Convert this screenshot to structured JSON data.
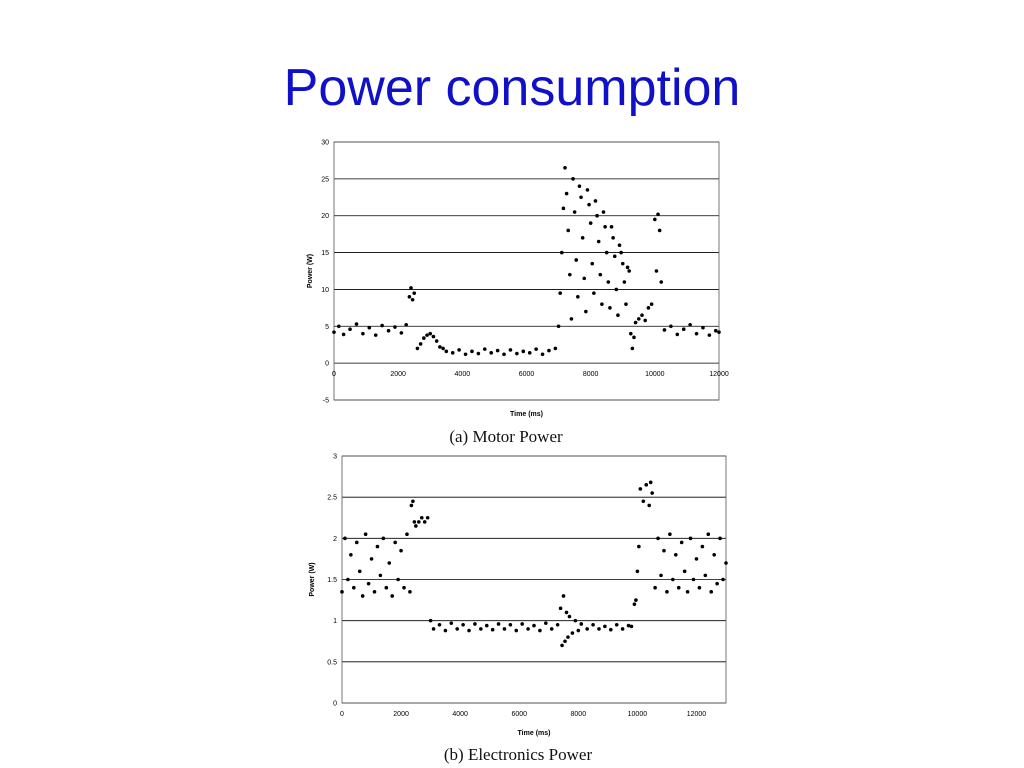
{
  "slide": {
    "title": "Power consumption"
  },
  "colors": {
    "title": "#1010c8",
    "points": "#000000",
    "grid": "#000000"
  },
  "chart_data": [
    {
      "type": "scatter",
      "caption": "(a) Motor Power",
      "xlabel": "Time (ms)",
      "ylabel": "Power (W)",
      "xlim": [
        0,
        12000
      ],
      "ylim": [
        -5,
        30
      ],
      "xticks": [
        0,
        2000,
        4000,
        6000,
        8000,
        10000,
        12000
      ],
      "xtick_labels": [
        "0",
        "2000",
        "4000",
        "6000",
        "8000",
        "10000",
        "12000"
      ],
      "yticks": [
        -5,
        0,
        5,
        10,
        15,
        20,
        25,
        30
      ],
      "ytick_labels": [
        "-5",
        "0",
        "5",
        "10",
        "15",
        "20",
        "25",
        "30"
      ],
      "grid": "horizontal",
      "series": [
        {
          "points": [
            [
              0,
              4.2
            ],
            [
              150,
              5.0
            ],
            [
              300,
              3.9
            ],
            [
              500,
              4.6
            ],
            [
              700,
              5.3
            ],
            [
              900,
              4.0
            ],
            [
              1100,
              4.8
            ],
            [
              1300,
              3.8
            ],
            [
              1500,
              5.1
            ],
            [
              1700,
              4.4
            ],
            [
              1900,
              4.9
            ],
            [
              2100,
              4.1
            ],
            [
              2250,
              5.2
            ],
            [
              2350,
              9.0
            ],
            [
              2400,
              10.2
            ],
            [
              2450,
              8.6
            ],
            [
              2500,
              9.5
            ],
            [
              2600,
              2.0
            ],
            [
              2700,
              2.6
            ],
            [
              2800,
              3.4
            ],
            [
              2900,
              3.8
            ],
            [
              3000,
              4.0
            ],
            [
              3100,
              3.6
            ],
            [
              3200,
              3.0
            ],
            [
              3300,
              2.2
            ],
            [
              3400,
              2.0
            ],
            [
              3500,
              1.6
            ],
            [
              3700,
              1.4
            ],
            [
              3900,
              1.8
            ],
            [
              4100,
              1.2
            ],
            [
              4300,
              1.6
            ],
            [
              4500,
              1.3
            ],
            [
              4700,
              1.9
            ],
            [
              4900,
              1.4
            ],
            [
              5100,
              1.7
            ],
            [
              5300,
              1.2
            ],
            [
              5500,
              1.8
            ],
            [
              5700,
              1.3
            ],
            [
              5900,
              1.6
            ],
            [
              6100,
              1.4
            ],
            [
              6300,
              1.9
            ],
            [
              6500,
              1.2
            ],
            [
              6700,
              1.7
            ],
            [
              6900,
              2.0
            ],
            [
              7000,
              5.0
            ],
            [
              7050,
              9.5
            ],
            [
              7100,
              15.0
            ],
            [
              7150,
              21.0
            ],
            [
              7200,
              26.5
            ],
            [
              7250,
              23.0
            ],
            [
              7300,
              18.0
            ],
            [
              7350,
              12.0
            ],
            [
              7400,
              6.0
            ],
            [
              7450,
              25.0
            ],
            [
              7500,
              20.5
            ],
            [
              7550,
              14.0
            ],
            [
              7600,
              9.0
            ],
            [
              7650,
              24.0
            ],
            [
              7700,
              22.5
            ],
            [
              7750,
              17.0
            ],
            [
              7800,
              11.5
            ],
            [
              7850,
              7.0
            ],
            [
              7900,
              23.5
            ],
            [
              7950,
              21.5
            ],
            [
              8000,
              19.0
            ],
            [
              8050,
              13.5
            ],
            [
              8100,
              9.5
            ],
            [
              8150,
              22.0
            ],
            [
              8200,
              20.0
            ],
            [
              8250,
              16.5
            ],
            [
              8300,
              12.0
            ],
            [
              8350,
              8.0
            ],
            [
              8400,
              20.5
            ],
            [
              8450,
              18.5
            ],
            [
              8500,
              15.0
            ],
            [
              8550,
              11.0
            ],
            [
              8600,
              7.5
            ],
            [
              8650,
              18.5
            ],
            [
              8700,
              17.0
            ],
            [
              8750,
              14.5
            ],
            [
              8800,
              10.0
            ],
            [
              8850,
              6.5
            ],
            [
              8900,
              16.0
            ],
            [
              8950,
              15.0
            ],
            [
              9000,
              13.5
            ],
            [
              9050,
              11.0
            ],
            [
              9100,
              8.0
            ],
            [
              9150,
              13.0
            ],
            [
              9200,
              12.5
            ],
            [
              9250,
              4.0
            ],
            [
              9300,
              2.0
            ],
            [
              9350,
              3.5
            ],
            [
              9400,
              5.5
            ],
            [
              9500,
              6.0
            ],
            [
              9600,
              6.5
            ],
            [
              9700,
              5.8
            ],
            [
              9800,
              7.5
            ],
            [
              9900,
              8.0
            ],
            [
              10000,
              19.5
            ],
            [
              10050,
              12.5
            ],
            [
              10100,
              20.2
            ],
            [
              10150,
              18.0
            ],
            [
              10200,
              11.0
            ],
            [
              10300,
              4.5
            ],
            [
              10500,
              5.0
            ],
            [
              10700,
              3.9
            ],
            [
              10900,
              4.6
            ],
            [
              11100,
              5.2
            ],
            [
              11300,
              4.0
            ],
            [
              11500,
              4.8
            ],
            [
              11700,
              3.8
            ],
            [
              11900,
              4.4
            ],
            [
              12000,
              4.2
            ]
          ]
        }
      ]
    },
    {
      "type": "scatter",
      "caption": "(b) Electronics Power",
      "xlabel": "Time (ms)",
      "ylabel": "Power (W)",
      "xlim": [
        0,
        13000
      ],
      "ylim": [
        0,
        3
      ],
      "xticks": [
        0,
        2000,
        4000,
        6000,
        8000,
        10000,
        12000
      ],
      "xtick_labels": [
        "0",
        "2000",
        "4000",
        "6000",
        "8000",
        "10000",
        "12000"
      ],
      "yticks": [
        0,
        0.5,
        1,
        1.5,
        2,
        2.5,
        3
      ],
      "ytick_labels": [
        "0",
        "0.5",
        "1",
        "1.5",
        "2",
        "2.5",
        "3"
      ],
      "grid": "horizontal",
      "series": [
        {
          "points": [
            [
              0,
              1.35
            ],
            [
              100,
              2.0
            ],
            [
              200,
              1.5
            ],
            [
              300,
              1.8
            ],
            [
              400,
              1.4
            ],
            [
              500,
              1.95
            ],
            [
              600,
              1.6
            ],
            [
              700,
              1.3
            ],
            [
              800,
              2.05
            ],
            [
              900,
              1.45
            ],
            [
              1000,
              1.75
            ],
            [
              1100,
              1.35
            ],
            [
              1200,
              1.9
            ],
            [
              1300,
              1.55
            ],
            [
              1400,
              2.0
            ],
            [
              1500,
              1.4
            ],
            [
              1600,
              1.7
            ],
            [
              1700,
              1.3
            ],
            [
              1800,
              1.95
            ],
            [
              1900,
              1.5
            ],
            [
              2000,
              1.85
            ],
            [
              2100,
              1.4
            ],
            [
              2200,
              2.05
            ],
            [
              2300,
              1.35
            ],
            [
              2350,
              2.4
            ],
            [
              2400,
              2.45
            ],
            [
              2450,
              2.2
            ],
            [
              2500,
              2.15
            ],
            [
              2600,
              2.2
            ],
            [
              2700,
              2.25
            ],
            [
              2800,
              2.2
            ],
            [
              2900,
              2.25
            ],
            [
              3000,
              1.0
            ],
            [
              3100,
              0.9
            ],
            [
              3300,
              0.95
            ],
            [
              3500,
              0.88
            ],
            [
              3700,
              0.97
            ],
            [
              3900,
              0.9
            ],
            [
              4100,
              0.95
            ],
            [
              4300,
              0.88
            ],
            [
              4500,
              0.96
            ],
            [
              4700,
              0.9
            ],
            [
              4900,
              0.94
            ],
            [
              5100,
              0.89
            ],
            [
              5300,
              0.96
            ],
            [
              5500,
              0.9
            ],
            [
              5700,
              0.95
            ],
            [
              5900,
              0.88
            ],
            [
              6100,
              0.96
            ],
            [
              6300,
              0.9
            ],
            [
              6500,
              0.94
            ],
            [
              6700,
              0.88
            ],
            [
              6900,
              0.97
            ],
            [
              7100,
              0.9
            ],
            [
              7300,
              0.95
            ],
            [
              7400,
              1.15
            ],
            [
              7450,
              0.7
            ],
            [
              7500,
              1.3
            ],
            [
              7550,
              0.75
            ],
            [
              7600,
              1.1
            ],
            [
              7650,
              0.8
            ],
            [
              7700,
              1.05
            ],
            [
              7800,
              0.85
            ],
            [
              7900,
              1.0
            ],
            [
              8000,
              0.88
            ],
            [
              8100,
              0.96
            ],
            [
              8300,
              0.9
            ],
            [
              8500,
              0.95
            ],
            [
              8700,
              0.9
            ],
            [
              8900,
              0.93
            ],
            [
              9100,
              0.89
            ],
            [
              9300,
              0.95
            ],
            [
              9500,
              0.9
            ],
            [
              9700,
              0.94
            ],
            [
              9800,
              0.93
            ],
            [
              9900,
              1.2
            ],
            [
              9950,
              1.25
            ],
            [
              10000,
              1.6
            ],
            [
              10050,
              1.9
            ],
            [
              10100,
              2.6
            ],
            [
              10200,
              2.45
            ],
            [
              10300,
              2.65
            ],
            [
              10400,
              2.4
            ],
            [
              10450,
              2.68
            ],
            [
              10500,
              2.55
            ],
            [
              10600,
              1.4
            ],
            [
              10700,
              2.0
            ],
            [
              10800,
              1.55
            ],
            [
              10900,
              1.85
            ],
            [
              11000,
              1.35
            ],
            [
              11100,
              2.05
            ],
            [
              11200,
              1.5
            ],
            [
              11300,
              1.8
            ],
            [
              11400,
              1.4
            ],
            [
              11500,
              1.95
            ],
            [
              11600,
              1.6
            ],
            [
              11700,
              1.35
            ],
            [
              11800,
              2.0
            ],
            [
              11900,
              1.5
            ],
            [
              12000,
              1.75
            ],
            [
              12100,
              1.4
            ],
            [
              12200,
              1.9
            ],
            [
              12300,
              1.55
            ],
            [
              12400,
              2.05
            ],
            [
              12500,
              1.35
            ],
            [
              12600,
              1.8
            ],
            [
              12700,
              1.45
            ],
            [
              12800,
              2.0
            ],
            [
              12900,
              1.5
            ],
            [
              13000,
              1.7
            ]
          ]
        }
      ]
    }
  ]
}
